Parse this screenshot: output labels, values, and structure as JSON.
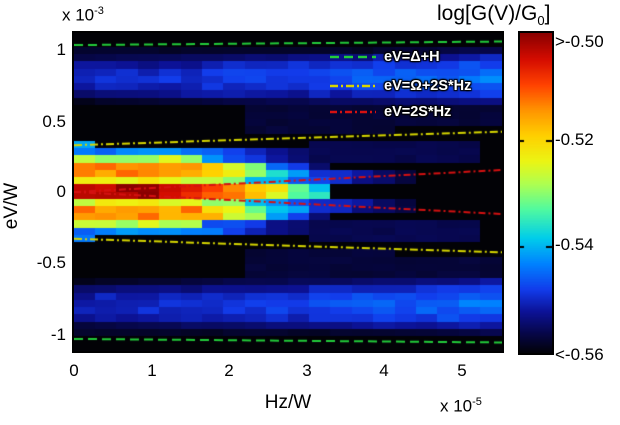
{
  "figure": {
    "background": "#ffffff"
  },
  "colorbar": {
    "title_prefix": "log[G(V)/G",
    "title_sub": "0",
    "title_suffix": "]",
    "tick_labels": [
      ">-0.50",
      "-0.52",
      "-0.54",
      "<-0.56"
    ],
    "tick_values": [
      -0.5,
      -0.52,
      -0.54,
      -0.56
    ]
  },
  "axes": {
    "xlabel": "Hz/W",
    "ylabel": "eV/W",
    "x_scale_base": "x 10",
    "x_scale_exp": "-5",
    "y_scale_base": "x 10",
    "y_scale_exp": "-3",
    "xticks": [
      "0",
      "1",
      "2",
      "3",
      "4",
      "5"
    ],
    "yticks": [
      "1",
      "0.5",
      "0",
      "-0.5",
      "-1"
    ]
  },
  "legend": {
    "items": [
      {
        "label": "eV=Δ+H",
        "color": "#22cc3a",
        "dash": [
          9,
          5
        ]
      },
      {
        "label": "eV=Ω+2S*Hz",
        "color": "#d6d600",
        "dash": [
          8,
          3,
          2,
          3
        ]
      },
      {
        "label": "eV=2S*Hz",
        "color": "#d51111",
        "dash": [
          7,
          3,
          2,
          3
        ]
      }
    ]
  },
  "chart_data": {
    "type": "heatmap",
    "title": "",
    "colorbar_title": "log[G(V)/G0]",
    "xlabel": "Hz/W",
    "ylabel": "eV/W",
    "xlim": [
      0,
      5.5e-05
    ],
    "ylim": [
      -0.00112,
      0.00112
    ],
    "xticks": [
      0,
      1e-05,
      2e-05,
      3e-05,
      4e-05,
      5e-05
    ],
    "yticks": [
      0.001,
      0.0005,
      0,
      -0.0005,
      -0.001
    ],
    "value_range": [
      -0.56,
      -0.5
    ],
    "colorbar_tick_values": [
      -0.5,
      -0.52,
      -0.54,
      -0.56
    ],
    "colormap": "jet",
    "n_cols": 20,
    "n_rows": 44,
    "x_unit_1e5": 5.52,
    "u_unit_1e3": 1.12,
    "bands": {
      "background": -0.5605,
      "outer_blue": {
        "center": 0.8,
        "half_width": 0.17,
        "value_x0": -0.5505,
        "value_x1": -0.5445,
        "falloff": 0.009
      },
      "upper_rim": {
        "u_in": 0.97,
        "u_out": 1.04,
        "value": -0.558
      },
      "outer_tail": {
        "x_start": 2.2,
        "u_max": 0.68,
        "value": -0.5572
      },
      "central": {
        "fade_start": 1.6,
        "fade_end": 3.4,
        "core_hw": 0.035,
        "core_cutoff_x": 3.35,
        "core_values": [
          [
            1.2,
            -0.502
          ],
          [
            2.0,
            -0.511
          ],
          [
            2.6,
            -0.522
          ],
          [
            3.35,
            -0.542
          ]
        ],
        "dip_edge": 0.065,
        "dip_value": -0.541,
        "yellow_in_edge": 0.115,
        "yellow_value": -0.5245,
        "orange_edge": 0.205,
        "orange_value": -0.5145,
        "yellow_out_edge": 0.26,
        "yellow_out_value": -0.527,
        "cyan_edge": 0.335,
        "cyan_value": -0.5435,
        "shrink_per_x": 0.018
      },
      "red_line_patches": {
        "x_start": 2.2,
        "x_end": 4.3,
        "half_width": 0.055,
        "value_start": -0.541,
        "value_end": -0.557
      },
      "mid_band": {
        "x_start": 2.0,
        "x_end": 5.2,
        "off_in": 0.2,
        "off_out": 0.05,
        "value": -0.556
      }
    },
    "overlay_lines": [
      {
        "name": "eV=Δ+H",
        "color": "#22cc3a",
        "dash": [
          9,
          5
        ],
        "u0": 1.035,
        "u1": 1.06,
        "mirror": true
      },
      {
        "name": "eV=Ω+2S*Hz",
        "color": "#d6d600",
        "dash": [
          8,
          3,
          2,
          3
        ],
        "u0": 0.33,
        "u1": 0.425,
        "mirror": true
      },
      {
        "name": "eV=2S*Hz",
        "color": "#d51111",
        "dash": [
          7,
          3,
          2,
          3
        ],
        "u0": 0.0,
        "u1": 0.155,
        "mirror": true
      }
    ]
  }
}
